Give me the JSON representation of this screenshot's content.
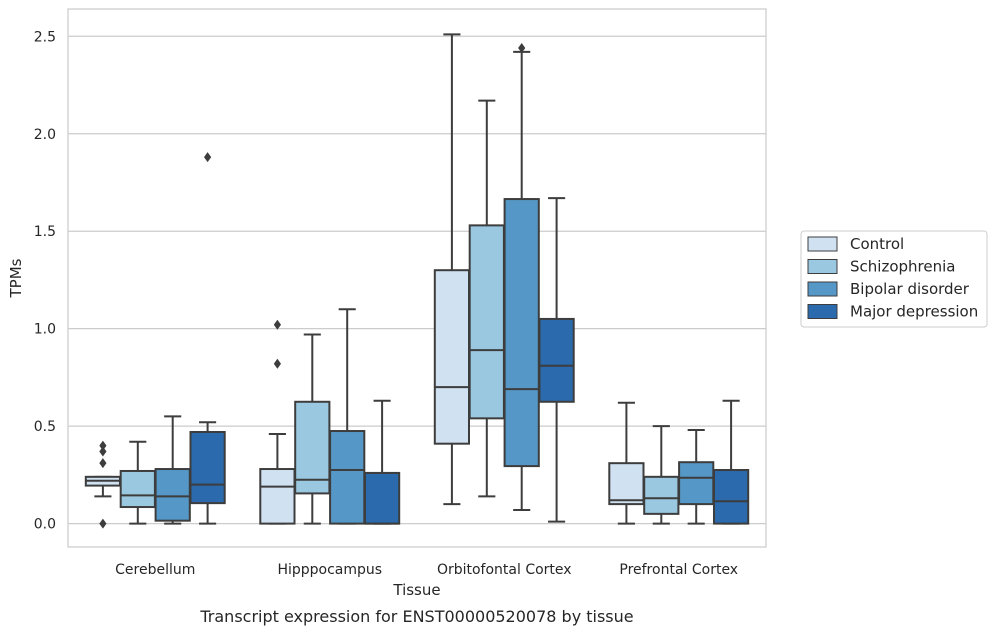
{
  "chart_data": {
    "type": "box",
    "title": "",
    "caption": "Transcript expression for ENST00000520078 by tissue",
    "xlabel": "Tissue",
    "ylabel": "TPMs",
    "ylim": [
      -0.12,
      2.64
    ],
    "yticks": [
      0.0,
      0.5,
      1.0,
      1.5,
      2.0,
      2.5
    ],
    "ytick_labels": [
      "0.0",
      "0.5",
      "1.0",
      "1.5",
      "2.0",
      "2.5"
    ],
    "grid": "horizontal",
    "legend_position": "right",
    "categories": [
      "Cerebellum",
      "Hipppocampus",
      "Orbitofontal Cortex",
      "Prefrontal Cortex"
    ],
    "series": [
      {
        "name": "Control",
        "color": "#d0e2f2",
        "boxes": [
          {
            "whislo": 0.14,
            "q1": 0.195,
            "med": 0.22,
            "q3": 0.24,
            "whishi": 0.24,
            "fliers": [
              0.4,
              0.37,
              0.31,
              0.0
            ]
          },
          {
            "whislo": 0.0,
            "q1": 0.0,
            "med": 0.19,
            "q3": 0.28,
            "whishi": 0.46,
            "fliers": [
              1.02,
              0.82
            ]
          },
          {
            "whislo": 0.1,
            "q1": 0.41,
            "med": 0.7,
            "q3": 1.3,
            "whishi": 2.51,
            "fliers": []
          },
          {
            "whislo": 0.0,
            "q1": 0.1,
            "med": 0.12,
            "q3": 0.31,
            "whishi": 0.62,
            "fliers": []
          }
        ]
      },
      {
        "name": "Schizophrenia",
        "color": "#9ac8e0",
        "boxes": [
          {
            "whislo": 0.0,
            "q1": 0.085,
            "med": 0.145,
            "q3": 0.27,
            "whishi": 0.42,
            "fliers": []
          },
          {
            "whislo": 0.0,
            "q1": 0.155,
            "med": 0.225,
            "q3": 0.625,
            "whishi": 0.97,
            "fliers": []
          },
          {
            "whislo": 0.14,
            "q1": 0.54,
            "med": 0.89,
            "q3": 1.53,
            "whishi": 2.17,
            "fliers": []
          },
          {
            "whislo": 0.0,
            "q1": 0.05,
            "med": 0.13,
            "q3": 0.24,
            "whishi": 0.5,
            "fliers": []
          }
        ]
      },
      {
        "name": "Bipolar disorder",
        "color": "#5597c6",
        "boxes": [
          {
            "whislo": 0.0,
            "q1": 0.015,
            "med": 0.14,
            "q3": 0.28,
            "whishi": 0.55,
            "fliers": []
          },
          {
            "whislo": 0.0,
            "q1": 0.0,
            "med": 0.275,
            "q3": 0.475,
            "whishi": 1.1,
            "fliers": []
          },
          {
            "whislo": 0.07,
            "q1": 0.295,
            "med": 0.69,
            "q3": 1.665,
            "whishi": 2.42,
            "fliers": [
              2.44
            ]
          },
          {
            "whislo": 0.0,
            "q1": 0.1,
            "med": 0.235,
            "q3": 0.315,
            "whishi": 0.48,
            "fliers": []
          }
        ]
      },
      {
        "name": "Major depression",
        "color": "#2a6aad",
        "boxes": [
          {
            "whislo": 0.0,
            "q1": 0.105,
            "med": 0.2,
            "q3": 0.47,
            "whishi": 0.52,
            "fliers": [
              1.88
            ]
          },
          {
            "whislo": 0.0,
            "q1": 0.0,
            "med": 0.0,
            "q3": 0.26,
            "whishi": 0.63,
            "fliers": []
          },
          {
            "whislo": 0.01,
            "q1": 0.625,
            "med": 0.81,
            "q3": 1.05,
            "whishi": 1.67,
            "fliers": []
          },
          {
            "whislo": 0.0,
            "q1": 0.0,
            "med": 0.115,
            "q3": 0.275,
            "whishi": 0.63,
            "fliers": []
          }
        ]
      }
    ]
  }
}
